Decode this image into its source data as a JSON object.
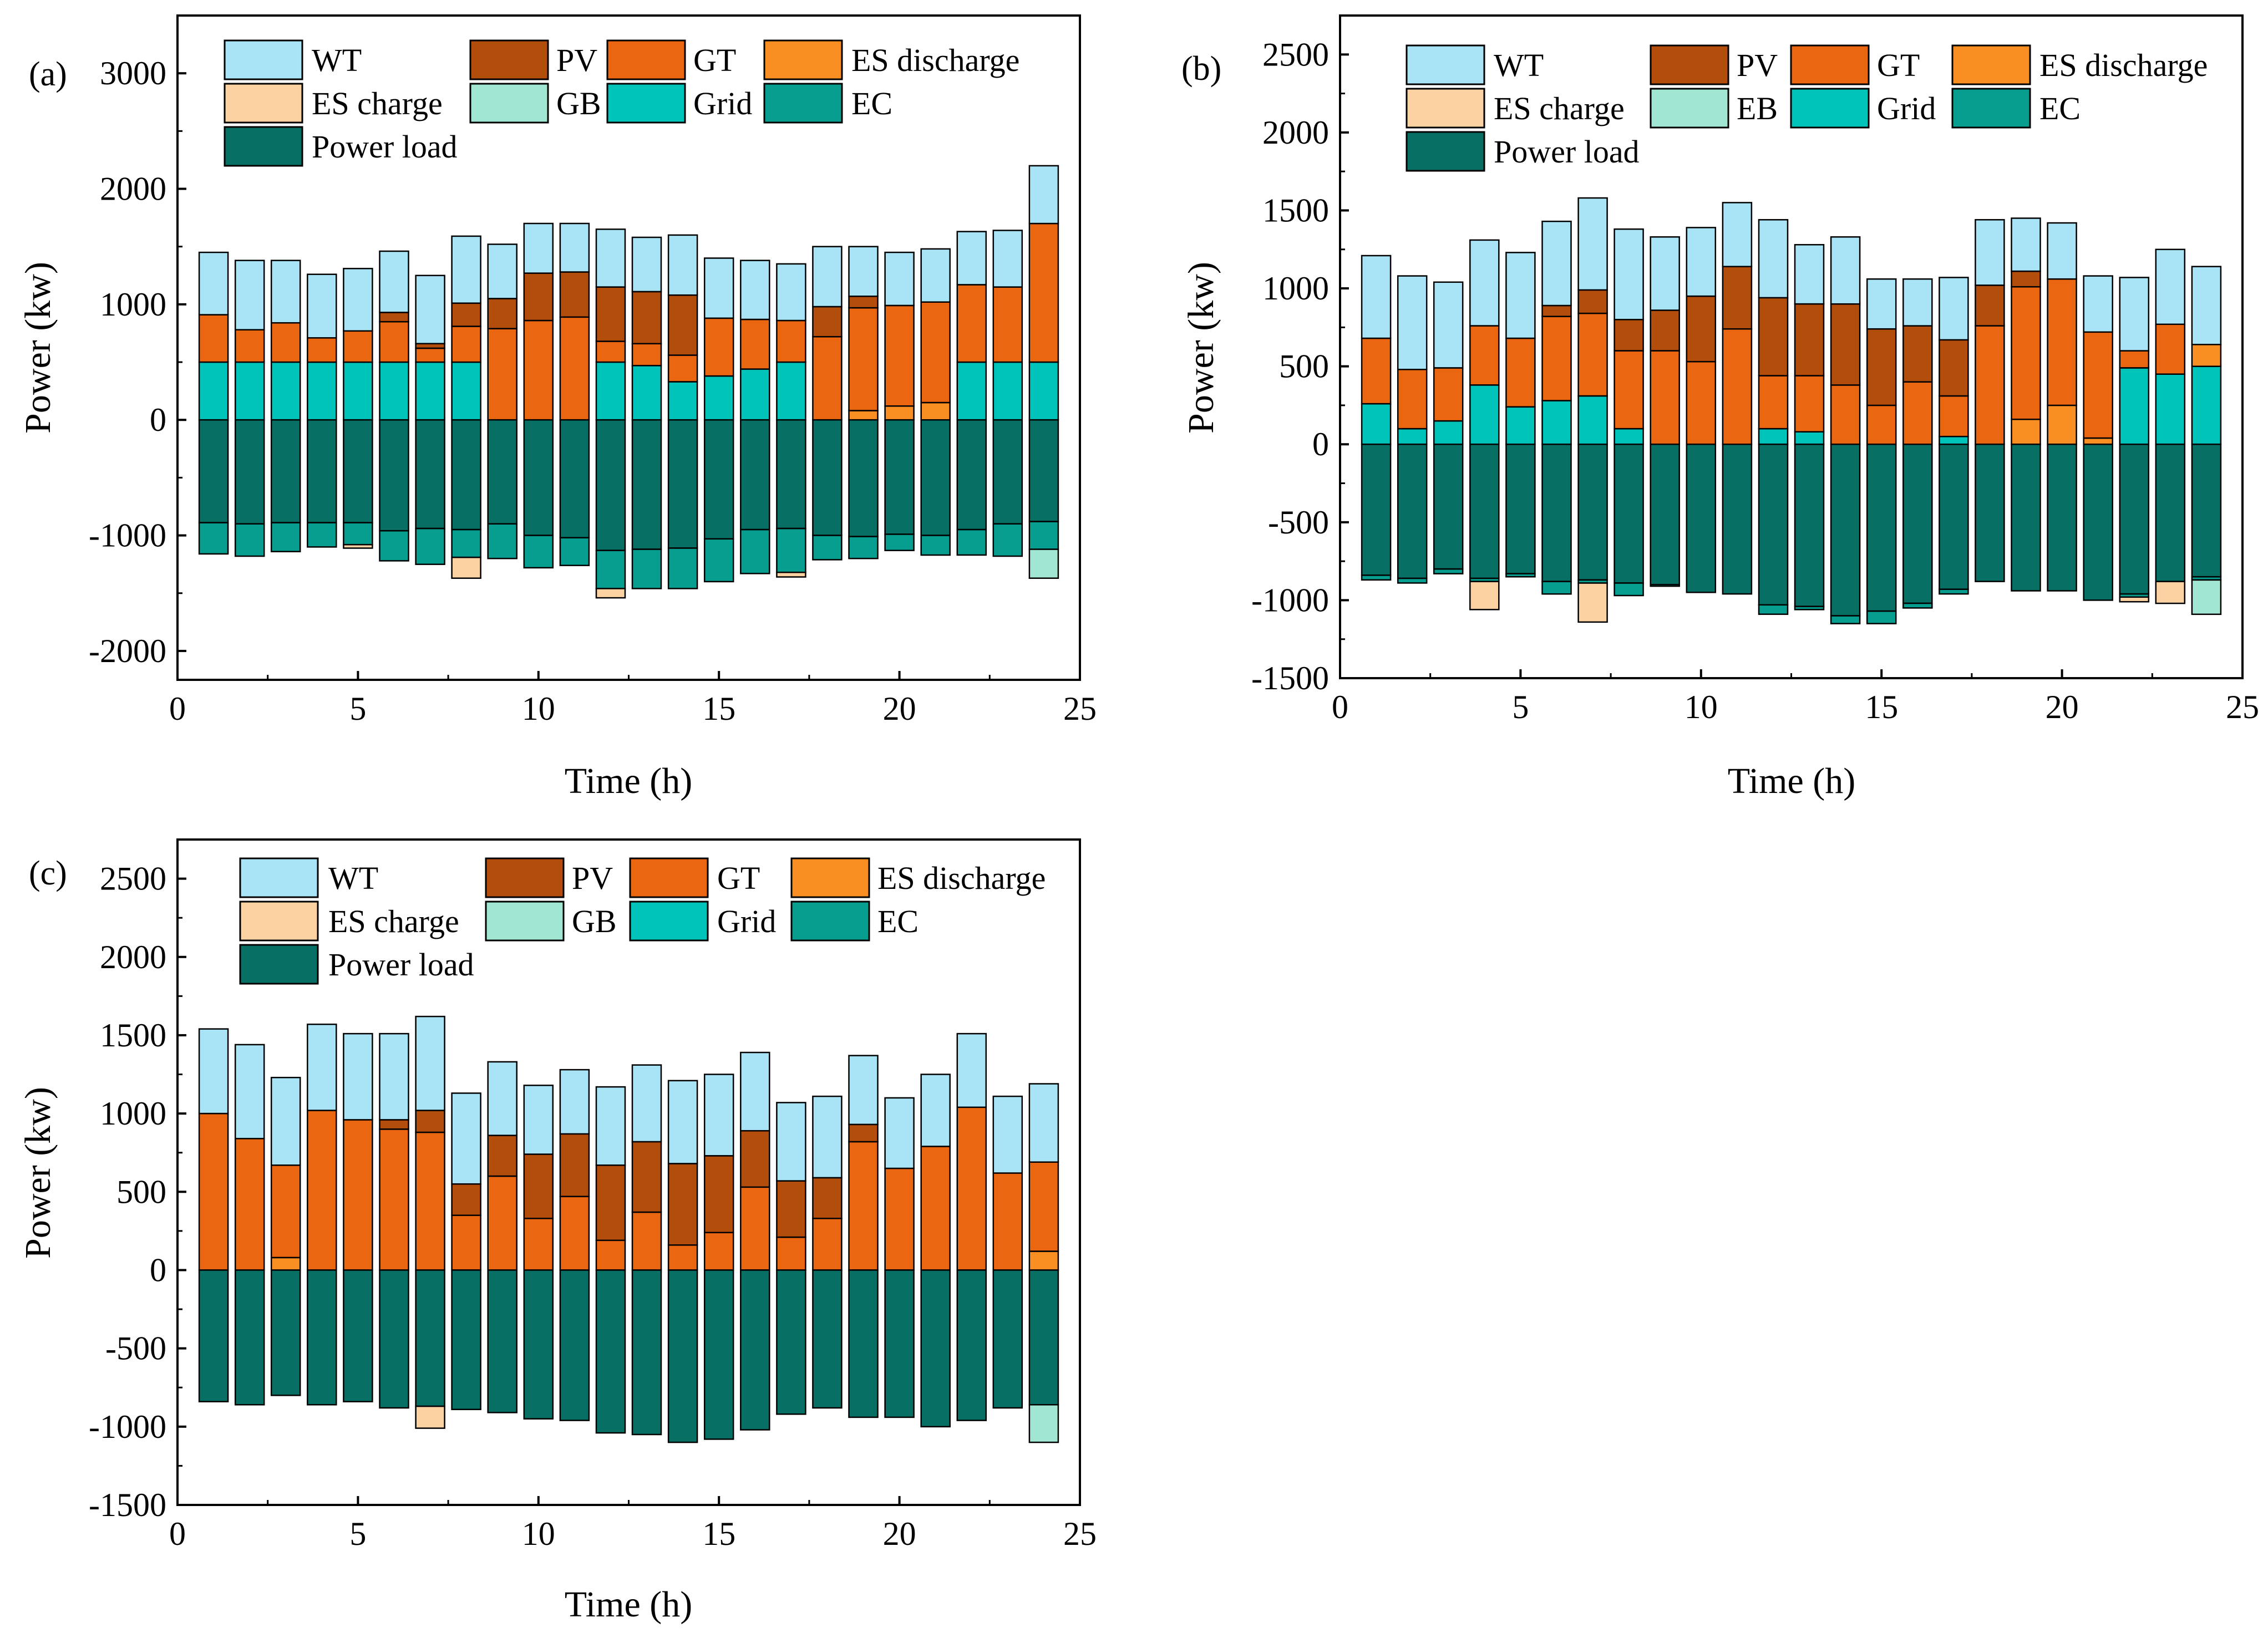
{
  "colors": {
    "WT": "#a8e4f6",
    "PV": "#b34d0c",
    "GT": "#eb6611",
    "ES discharge": "#f98f23",
    "ES charge": "#fcd2a2",
    "GB": "#a0e6d2",
    "EB": "#a0e6d2",
    "Grid": "#00c3b9",
    "EC": "#079e90",
    "Power load": "#076f64"
  },
  "chart_data": [
    {
      "type": "bar",
      "stacked": true,
      "panel_label": "(a)",
      "xlabel": "Time (h)",
      "ylabel": "Power (kw)",
      "xlim": [
        0,
        25
      ],
      "ylim": [
        -2250,
        3500
      ],
      "xticks": [
        0,
        5,
        10,
        15,
        20,
        25
      ],
      "yticks": [
        -2000,
        -1000,
        0,
        1000,
        2000,
        3000
      ],
      "legend": [
        "WT",
        "PV",
        "GT",
        "ES discharge",
        "ES charge",
        "GB",
        "Grid",
        "EC",
        "Power load"
      ],
      "x": [
        1,
        2,
        3,
        4,
        5,
        6,
        7,
        8,
        9,
        10,
        11,
        12,
        13,
        14,
        15,
        16,
        17,
        18,
        19,
        20,
        21,
        22,
        23,
        24
      ],
      "series": [
        {
          "name": "Grid",
          "values": [
            500,
            500,
            500,
            500,
            500,
            500,
            500,
            500,
            0,
            0,
            0,
            500,
            470,
            330,
            380,
            440,
            500,
            0,
            0,
            0,
            0,
            500,
            500,
            500
          ]
        },
        {
          "name": "ES discharge",
          "values": [
            0,
            0,
            0,
            0,
            0,
            0,
            0,
            0,
            0,
            0,
            0,
            0,
            0,
            0,
            0,
            0,
            0,
            0,
            80,
            120,
            150,
            0,
            0,
            0
          ]
        },
        {
          "name": "GT",
          "values": [
            410,
            280,
            340,
            210,
            270,
            350,
            120,
            310,
            790,
            860,
            890,
            180,
            190,
            230,
            500,
            430,
            360,
            720,
            890,
            870,
            870,
            670,
            650,
            1200
          ]
        },
        {
          "name": "PV",
          "values": [
            0,
            0,
            0,
            0,
            0,
            80,
            40,
            200,
            260,
            410,
            390,
            470,
            450,
            520,
            0,
            0,
            0,
            260,
            100,
            0,
            0,
            0,
            0,
            0
          ]
        },
        {
          "name": "WT",
          "values": [
            540,
            600,
            540,
            550,
            540,
            530,
            590,
            580,
            470,
            430,
            420,
            500,
            470,
            520,
            520,
            510,
            490,
            520,
            430,
            460,
            460,
            460,
            490,
            500
          ]
        },
        {
          "name": "Power load",
          "values": [
            -890,
            -900,
            -890,
            -890,
            -890,
            -960,
            -940,
            -950,
            -900,
            -1000,
            -1020,
            -1130,
            -1120,
            -1110,
            -1030,
            -950,
            -940,
            -1000,
            -1010,
            -990,
            -1000,
            -950,
            -900,
            -880
          ]
        },
        {
          "name": "EC",
          "values": [
            -270,
            -280,
            -250,
            -210,
            -190,
            -260,
            -310,
            -240,
            -300,
            -280,
            -240,
            -330,
            -340,
            -350,
            -370,
            -380,
            -380,
            -210,
            -190,
            -140,
            -170,
            -220,
            -280,
            -240
          ]
        },
        {
          "name": "ES charge",
          "values": [
            0,
            0,
            0,
            0,
            -30,
            0,
            0,
            -180,
            0,
            0,
            0,
            -80,
            0,
            0,
            0,
            0,
            -40,
            0,
            0,
            0,
            0,
            0,
            0,
            0
          ]
        },
        {
          "name": "GB",
          "values": [
            0,
            0,
            0,
            0,
            0,
            0,
            0,
            0,
            0,
            0,
            0,
            0,
            0,
            0,
            0,
            0,
            0,
            0,
            0,
            0,
            0,
            0,
            0,
            -250
          ]
        }
      ]
    },
    {
      "type": "bar",
      "stacked": true,
      "panel_label": "(b)",
      "xlabel": "Time (h)",
      "ylabel": "Power (kw)",
      "xlim": [
        0,
        25
      ],
      "ylim": [
        -1500,
        2750
      ],
      "xticks": [
        0,
        5,
        10,
        15,
        20,
        25
      ],
      "yticks": [
        -1500,
        -1000,
        -500,
        0,
        500,
        1000,
        1500,
        2000,
        2500
      ],
      "legend": [
        "WT",
        "PV",
        "GT",
        "ES discharge",
        "ES charge",
        "EB",
        "Grid",
        "EC",
        "Power load"
      ],
      "x": [
        1,
        2,
        3,
        4,
        5,
        6,
        7,
        8,
        9,
        10,
        11,
        12,
        13,
        14,
        15,
        16,
        17,
        18,
        19,
        20,
        21,
        22,
        23,
        24
      ],
      "series": [
        {
          "name": "Grid",
          "values": [
            260,
            100,
            150,
            380,
            240,
            280,
            310,
            100,
            0,
            0,
            0,
            100,
            80,
            0,
            0,
            0,
            50,
            0,
            0,
            0,
            0,
            490,
            450,
            500
          ]
        },
        {
          "name": "ES discharge",
          "values": [
            0,
            0,
            0,
            0,
            0,
            0,
            0,
            0,
            0,
            0,
            0,
            0,
            0,
            0,
            0,
            0,
            0,
            0,
            160,
            250,
            40,
            0,
            0,
            140
          ]
        },
        {
          "name": "GT",
          "values": [
            420,
            380,
            340,
            380,
            440,
            540,
            530,
            500,
            600,
            530,
            740,
            340,
            360,
            380,
            250,
            400,
            260,
            760,
            850,
            810,
            680,
            110,
            320,
            0
          ]
        },
        {
          "name": "PV",
          "values": [
            0,
            0,
            0,
            0,
            0,
            70,
            150,
            200,
            260,
            420,
            400,
            500,
            460,
            520,
            490,
            360,
            360,
            260,
            100,
            0,
            0,
            0,
            0,
            0
          ]
        },
        {
          "name": "WT",
          "values": [
            530,
            600,
            550,
            550,
            550,
            540,
            590,
            580,
            470,
            440,
            410,
            500,
            380,
            430,
            320,
            300,
            400,
            420,
            340,
            360,
            360,
            470,
            480,
            500
          ]
        },
        {
          "name": "Power load",
          "values": [
            -840,
            -860,
            -800,
            -860,
            -830,
            -880,
            -870,
            -890,
            -900,
            -950,
            -960,
            -1030,
            -1040,
            -1100,
            -1070,
            -1020,
            -930,
            -880,
            -940,
            -940,
            -1000,
            -960,
            -880,
            -850
          ]
        },
        {
          "name": "EC",
          "values": [
            -30,
            -30,
            -30,
            -20,
            -20,
            -80,
            -20,
            -80,
            -10,
            0,
            0,
            -60,
            -20,
            -50,
            -80,
            -30,
            -30,
            0,
            0,
            0,
            0,
            -20,
            0,
            -20
          ]
        },
        {
          "name": "ES charge",
          "values": [
            0,
            0,
            0,
            -180,
            0,
            0,
            -250,
            0,
            0,
            0,
            0,
            0,
            0,
            0,
            0,
            0,
            0,
            0,
            0,
            0,
            0,
            -30,
            -140,
            0
          ]
        },
        {
          "name": "EB",
          "values": [
            0,
            0,
            0,
            0,
            0,
            0,
            0,
            0,
            0,
            0,
            0,
            0,
            0,
            0,
            0,
            0,
            0,
            0,
            0,
            0,
            0,
            0,
            0,
            -220
          ]
        }
      ]
    },
    {
      "type": "bar",
      "stacked": true,
      "panel_label": "(c)",
      "xlabel": "Time (h)",
      "ylabel": "Power (kw)",
      "xlim": [
        0,
        25
      ],
      "ylim": [
        -1500,
        2750
      ],
      "xticks": [
        0,
        5,
        10,
        15,
        20,
        25
      ],
      "yticks": [
        -1500,
        -1000,
        -500,
        0,
        500,
        1000,
        1500,
        2000,
        2500
      ],
      "legend": [
        "WT",
        "PV",
        "GT",
        "ES discharge",
        "ES charge",
        "GB",
        "Grid",
        "EC",
        "Power load"
      ],
      "x": [
        1,
        2,
        3,
        4,
        5,
        6,
        7,
        8,
        9,
        10,
        11,
        12,
        13,
        14,
        15,
        16,
        17,
        18,
        19,
        20,
        21,
        22,
        23,
        24
      ],
      "series": [
        {
          "name": "ES discharge",
          "values": [
            0,
            0,
            80,
            0,
            0,
            0,
            0,
            0,
            0,
            0,
            0,
            0,
            0,
            0,
            0,
            0,
            0,
            0,
            0,
            0,
            0,
            0,
            0,
            120
          ]
        },
        {
          "name": "GT",
          "values": [
            1000,
            840,
            590,
            1020,
            960,
            900,
            880,
            350,
            600,
            330,
            470,
            190,
            370,
            160,
            240,
            530,
            210,
            330,
            820,
            650,
            790,
            1040,
            620,
            570
          ]
        },
        {
          "name": "PV",
          "values": [
            0,
            0,
            0,
            0,
            0,
            60,
            140,
            200,
            260,
            410,
            400,
            480,
            450,
            520,
            490,
            360,
            360,
            260,
            110,
            0,
            0,
            0,
            0,
            0
          ]
        },
        {
          "name": "WT",
          "values": [
            540,
            600,
            560,
            550,
            550,
            550,
            600,
            580,
            470,
            440,
            410,
            500,
            490,
            530,
            520,
            500,
            500,
            520,
            440,
            450,
            460,
            470,
            490,
            500
          ]
        },
        {
          "name": "Power load",
          "values": [
            -840,
            -860,
            -800,
            -860,
            -840,
            -880,
            -870,
            -890,
            -910,
            -950,
            -960,
            -1040,
            -1050,
            -1100,
            -1080,
            -1020,
            -920,
            -880,
            -940,
            -940,
            -1000,
            -960,
            -880,
            -860
          ]
        },
        {
          "name": "ES charge",
          "values": [
            0,
            0,
            0,
            0,
            0,
            0,
            -140,
            0,
            0,
            0,
            0,
            0,
            0,
            0,
            0,
            0,
            0,
            0,
            0,
            0,
            0,
            0,
            0,
            0
          ]
        },
        {
          "name": "GB",
          "values": [
            0,
            0,
            0,
            0,
            0,
            0,
            0,
            0,
            0,
            0,
            0,
            0,
            0,
            0,
            0,
            0,
            0,
            0,
            0,
            0,
            0,
            0,
            0,
            -240
          ]
        }
      ]
    }
  ]
}
